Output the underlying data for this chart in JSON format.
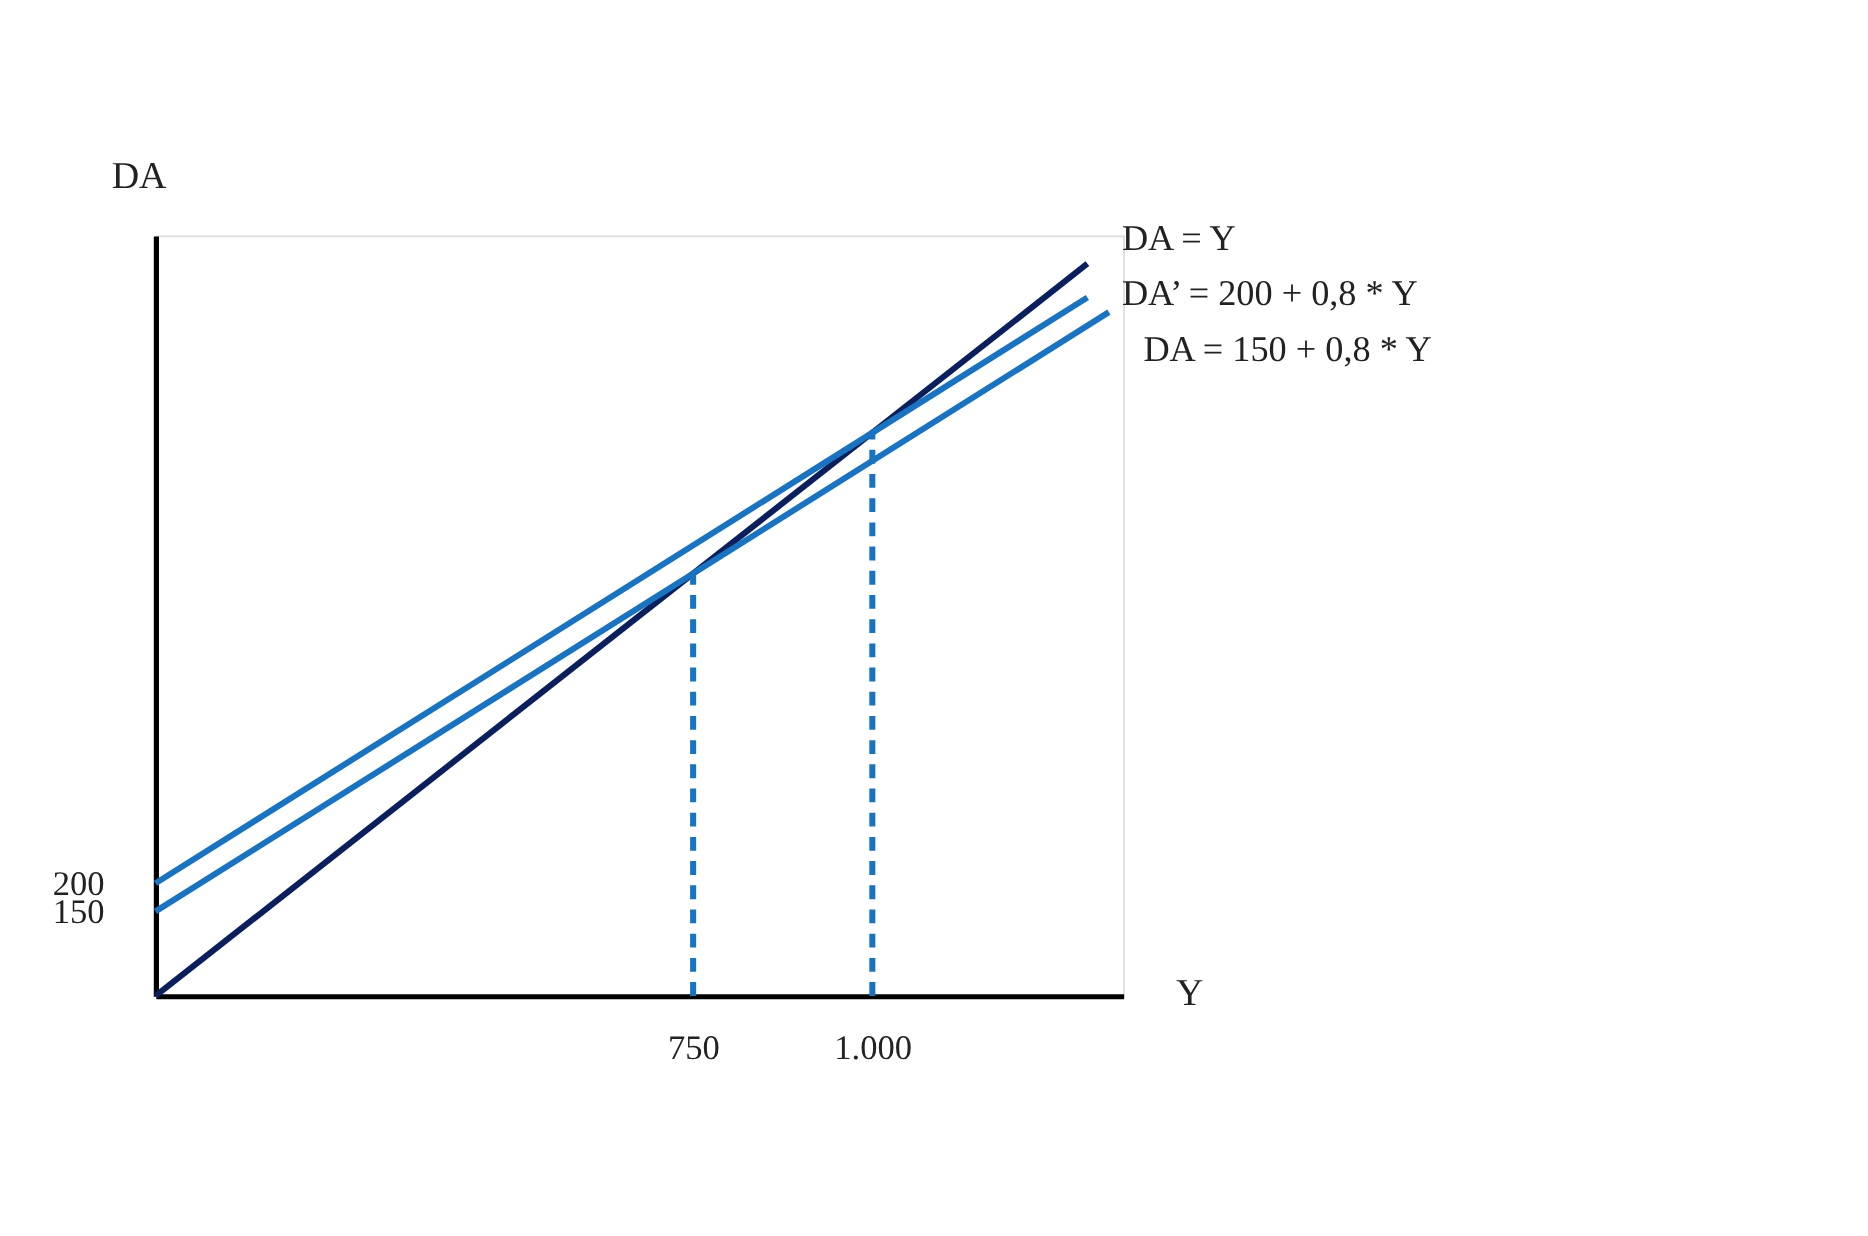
{
  "chart_data": {
    "type": "line",
    "xlabel": "Y",
    "ylabel": "DA",
    "xlim": [
      0,
      1350
    ],
    "ylim": [
      0,
      1350
    ],
    "xticks": [
      750,
      {
        "value": 1000,
        "label": "1.000"
      }
    ],
    "yticks": [
      150,
      200
    ],
    "grid": false,
    "marker": "none",
    "series": [
      {
        "name": "DA = Y",
        "color": "#0b1f5c",
        "x": [
          0,
          1300
        ],
        "values": [
          0,
          1300
        ],
        "line_style": "solid"
      },
      {
        "name": "DA’ = 200 + 0,8 * Y",
        "color": "#1a73c0",
        "x": [
          0,
          1300
        ],
        "values": [
          200,
          1240
        ],
        "line_style": "solid"
      },
      {
        "name": "DA = 150 + 0,8 * Y",
        "color": "#1a73c0",
        "x": [
          0,
          1330
        ],
        "values": [
          150,
          1214
        ],
        "line_style": "solid"
      },
      {
        "color": "#1a73c0",
        "x": [
          750,
          750
        ],
        "values": [
          0,
          750
        ],
        "line_style": "dashed"
      },
      {
        "color": "#1a73c0",
        "x": [
          1000,
          1000
        ],
        "values": [
          0,
          1000
        ],
        "line_style": "dashed"
      }
    ]
  }
}
